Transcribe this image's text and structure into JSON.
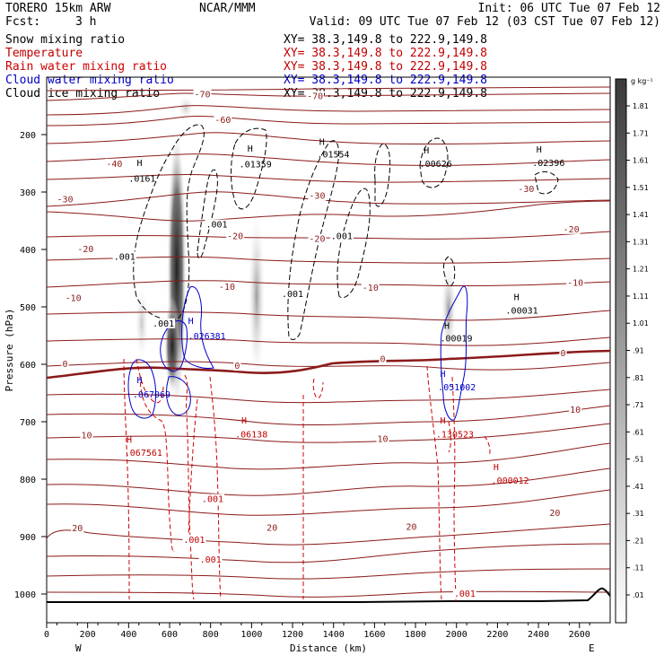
{
  "header": {
    "model": "TORERO  15km ARW",
    "center": "NCAR/MMM",
    "init": "Init: 06 UTC Tue 07 Feb 12",
    "fcst_label": "Fcst:",
    "fcst_value": "3 h",
    "valid": "Valid: 09 UTC Tue 07 Feb 12 (03 CST Tue 07 Feb 12)"
  },
  "fields": [
    {
      "name": "Snow mixing ratio",
      "color": "#000000",
      "xy": "XY=  38.3,149.8 to 222.9,149.8",
      "xy_color": "#000000"
    },
    {
      "name": "Temperature",
      "color": "#c00000",
      "xy": "XY=  38.3,149.8 to 222.9,149.8",
      "xy_color": "#c00000"
    },
    {
      "name": "Rain water mixing ratio",
      "color": "#d00000",
      "xy": "XY=  38.3,149.8 to 222.9,149.8",
      "xy_color": "#c00000"
    },
    {
      "name": "Cloud water mixing ratio",
      "color": "#0000c8",
      "xy": "XY=  38.3,149.8 to 222.9,149.8",
      "xy_color": "#0000c8"
    },
    {
      "name": "Cloud ice mixing ratio",
      "color": "#000000",
      "xy": "XY=  38.3,149.8 to 222.9,149.8",
      "xy_color": "#000000"
    }
  ],
  "chart_data": {
    "type": "cross-section",
    "xlabel": "Distance (km)",
    "ylabel": "Pressure (hPa)",
    "xlim": [
      0,
      2750
    ],
    "ylim": [
      1050,
      100
    ],
    "x_ticks": [
      0,
      200,
      400,
      600,
      800,
      1000,
      1200,
      1400,
      1600,
      1800,
      2000,
      2200,
      2400,
      2600
    ],
    "y_ticks": [
      200,
      300,
      400,
      500,
      600,
      700,
      800,
      900,
      1000
    ],
    "left_end": "W",
    "right_end": "E",
    "colorbar": {
      "unit": "g kg⁻¹",
      "labels": [
        "1.81",
        "1.71",
        "1.61",
        "1.51",
        "1.41",
        "1.31",
        "1.21",
        "1.11",
        "1.01",
        ".91",
        ".81",
        ".71",
        ".61",
        ".51",
        ".41",
        ".31",
        ".21",
        ".11",
        ".01"
      ]
    },
    "temperature_labels": [
      {
        "text": "-70",
        "x": 760,
        "p": 135
      },
      {
        "text": "-70",
        "x": 1310,
        "p": 138
      },
      {
        "text": "-60",
        "x": 860,
        "p": 180
      },
      {
        "text": "-40",
        "x": 330,
        "p": 256
      },
      {
        "text": "-30",
        "x": 90,
        "p": 318
      },
      {
        "text": "-30",
        "x": 1320,
        "p": 312
      },
      {
        "text": "-30",
        "x": 2340,
        "p": 300
      },
      {
        "text": "-20",
        "x": 920,
        "p": 382
      },
      {
        "text": "-20",
        "x": 1320,
        "p": 387
      },
      {
        "text": "-20",
        "x": 2560,
        "p": 370
      },
      {
        "text": "-20",
        "x": 190,
        "p": 405
      },
      {
        "text": "-10",
        "x": 130,
        "p": 490
      },
      {
        "text": "-10",
        "x": 880,
        "p": 470
      },
      {
        "text": "-10",
        "x": 1580,
        "p": 472
      },
      {
        "text": "-10",
        "x": 2580,
        "p": 463
      },
      {
        "text": "0",
        "x": 90,
        "p": 605
      },
      {
        "text": "0",
        "x": 930,
        "p": 608
      },
      {
        "text": "0",
        "x": 1640,
        "p": 596
      },
      {
        "text": "0",
        "x": 2520,
        "p": 586
      },
      {
        "text": "10",
        "x": 195,
        "p": 729
      },
      {
        "text": "10",
        "x": 1640,
        "p": 735
      },
      {
        "text": "10",
        "x": 2580,
        "p": 684
      },
      {
        "text": "20",
        "x": 150,
        "p": 891
      },
      {
        "text": "20",
        "x": 1100,
        "p": 890
      },
      {
        "text": "20",
        "x": 1780,
        "p": 888
      },
      {
        "text": "20",
        "x": 2480,
        "p": 864
      }
    ],
    "max_labels": [
      {
        "h": "H",
        "v": ".0161",
        "x": 440,
        "p": 255,
        "color": "#000000",
        "vx": 400,
        "vp": 282
      },
      {
        "h": "H",
        "v": ".01359",
        "x": 980,
        "p": 230,
        "color": "#000000",
        "vx": 940,
        "vp": 257
      },
      {
        "h": "H",
        "v": ".01554",
        "x": 1330,
        "p": 218,
        "color": "#000000",
        "vx": 1320,
        "vp": 240
      },
      {
        "h": "H",
        "v": ".00626",
        "x": 1840,
        "p": 233,
        "color": "#000000",
        "vx": 1820,
        "vp": 256
      },
      {
        "h": "H",
        "v": ".02396",
        "x": 2390,
        "p": 231,
        "color": "#000000",
        "vx": 2370,
        "vp": 255
      },
      {
        "h": "H",
        "v": ".00031",
        "x": 2280,
        "p": 488,
        "color": "#000000",
        "vx": 2240,
        "vp": 512
      },
      {
        "h": "H",
        "v": ".00019",
        "x": 1940,
        "p": 538,
        "color": "#000000",
        "vx": 1920,
        "vp": 560
      },
      {
        "h": "H",
        "v": ".026381",
        "x": 690,
        "p": 530,
        "color": "#0000c8",
        "vx": 690,
        "vp": 556
      },
      {
        "h": "H",
        "v": ".067069",
        "x": 440,
        "p": 633,
        "color": "#0000c8",
        "vx": 420,
        "vp": 658
      },
      {
        "h": "H",
        "v": ".051002",
        "x": 1920,
        "p": 622,
        "color": "#0000c8",
        "vx": 1910,
        "vp": 645
      },
      {
        "h": "H",
        "v": ".06138",
        "x": 950,
        "p": 703,
        "color": "#c00000",
        "vx": 920,
        "vp": 727
      },
      {
        "h": "H",
        "v": ".067561",
        "x": 390,
        "p": 737,
        "color": "#c00000",
        "vx": 380,
        "vp": 759
      },
      {
        "h": "H",
        "v": ".130523",
        "x": 1920,
        "p": 703,
        "color": "#c00000",
        "vx": 1900,
        "vp": 727
      },
      {
        "h": "H",
        "v": ".000012",
        "x": 2180,
        "p": 784,
        "color": "#c00000",
        "vx": 2170,
        "vp": 808
      }
    ],
    "contour_value_labels": [
      {
        "v": ".001",
        "x": 380,
        "p": 418,
        "color": "#000000"
      },
      {
        "v": ".001",
        "x": 830,
        "p": 362,
        "color": "#000000"
      },
      {
        "v": ".001",
        "x": 1440,
        "p": 382,
        "color": "#000000"
      },
      {
        "v": ".001",
        "x": 1200,
        "p": 483,
        "color": "#000000"
      },
      {
        "v": ".001",
        "x": 570,
        "p": 534,
        "color": "#000000"
      },
      {
        "v": ".001",
        "x": 810,
        "p": 840,
        "color": "#c00000"
      },
      {
        "v": ".001",
        "x": 720,
        "p": 911,
        "color": "#c00000"
      },
      {
        "v": ".001",
        "x": 800,
        "p": 945,
        "color": "#c00000"
      },
      {
        "v": ".001",
        "x": 2040,
        "p": 1005,
        "color": "#c00000"
      }
    ]
  }
}
